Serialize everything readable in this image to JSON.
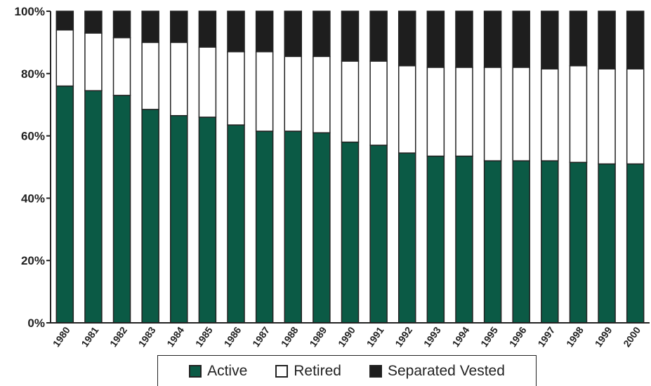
{
  "chart_data": {
    "type": "bar",
    "stacked": true,
    "categories": [
      "1980",
      "1981",
      "1982",
      "1983",
      "1984",
      "1985",
      "1986",
      "1987",
      "1988",
      "1989",
      "1990",
      "1991",
      "1992",
      "1993",
      "1994",
      "1995",
      "1996",
      "1997",
      "1998",
      "1999",
      "2000"
    ],
    "series": [
      {
        "name": "Active",
        "color": "#0b5a45",
        "values": [
          76,
          74.5,
          73,
          68.5,
          66.5,
          66,
          63.5,
          61.5,
          61.5,
          61,
          58,
          57,
          54.5,
          53.5,
          53.5,
          52,
          52,
          52,
          51.5,
          51,
          51
        ]
      },
      {
        "name": "Retired",
        "color": "#ffffff",
        "values": [
          18,
          18.5,
          18.5,
          21.5,
          23.5,
          22.5,
          23.5,
          25.5,
          24,
          24.5,
          26,
          27,
          28,
          28.5,
          28.5,
          30,
          30,
          29.5,
          31,
          30.5,
          30.5
        ]
      },
      {
        "name": "Separated Vested",
        "color": "#1e1e1e",
        "values": [
          6,
          7,
          8.5,
          10,
          10,
          11.5,
          13,
          13,
          14.5,
          14.5,
          16,
          16,
          17.5,
          18,
          18,
          18,
          18,
          18.5,
          17.5,
          18.5,
          18.5
        ]
      }
    ],
    "yticks": [
      "0%",
      "20%",
      "40%",
      "60%",
      "80%",
      "100%"
    ],
    "ylim": [
      0,
      100
    ],
    "title": "",
    "xlabel": "",
    "ylabel": "",
    "grid": false,
    "legend_position": "bottom"
  }
}
